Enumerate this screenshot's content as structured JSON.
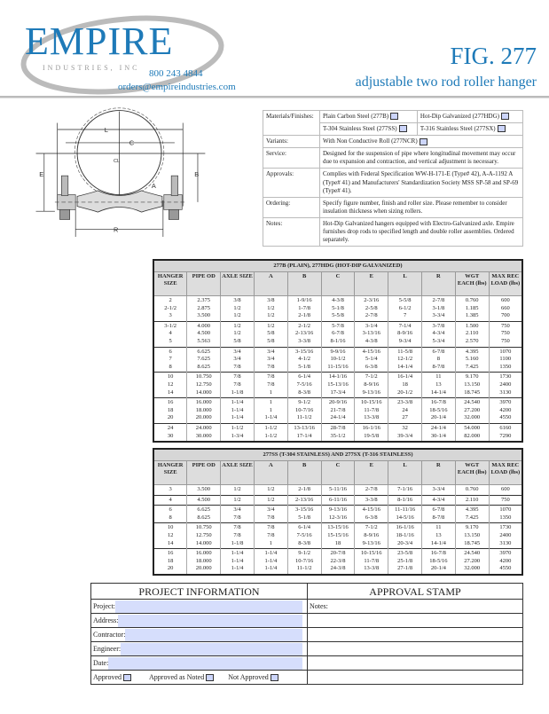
{
  "header": {
    "brand": "EMPIRE",
    "brand_sub": "INDUSTRIES, INC",
    "phone": "800 243 4844",
    "email": "orders@empireindustries.com",
    "figure": "FIG. 277",
    "subtitle": "adjustable two rod roller hanger",
    "accent": "#1e7ab8"
  },
  "drawing": {
    "labels": [
      "L",
      "C",
      "E",
      "B",
      "A",
      "R",
      "CL"
    ]
  },
  "spec": {
    "materials_label": "Materials/Finishes:",
    "materials": [
      "Plain Carbon Steel (277B)",
      "Hot-Dip Galvanized (277HDG)",
      "T-304 Stainless Steel (277SS)",
      "T-316 Stainless Steel (277SX)"
    ],
    "variants_label": "Variants:",
    "variants": "With Non Conductive Roll (277NCR)",
    "service_label": "Service:",
    "service": "Designed for the suspension of pipe where longitudinal movement may occur due to expansion and contraction, and vertical adjustment is necessary.",
    "approvals_label": "Approvals:",
    "approvals": "Complies with Federal Specification WW-H-171-E (Type# 42), A-A-1192 A (Type# 41) and Manufacturers' Standardization Society MSS SP-58 and SP-69 (Type# 41).",
    "ordering_label": "Ordering:",
    "ordering": "Specify figure number, finish and roller size. Please remember to consider insulation thickness when sizing rollers.",
    "notes_label": "Notes:",
    "notes": "Hot-Dip Galvanized hangers equipped with Electro-Galvanized axle. Empire furnishes drop rods to specified length and double roller assemblies. Ordered separately."
  },
  "columns": [
    "HANGER SIZE",
    "PIPE OD",
    "AXLE SIZE",
    "A",
    "B",
    "C",
    "E",
    "L",
    "R",
    "WGT EACH (lbs)",
    "MAX REC LOAD (lbs)"
  ],
  "table1": {
    "title": "277B (PLAIN), 277HDG (HOT-DIP GALVANIZED)",
    "groups": [
      [
        [
          "2",
          "2.375",
          "3/8",
          "3/8",
          "1-9/16",
          "4-3/8",
          "2-3/16",
          "5-5/8",
          "2-7/8",
          "0.760",
          "600"
        ],
        [
          "2-1/2",
          "2.875",
          "1/2",
          "1/2",
          "1-7/8",
          "5-1/8",
          "2-5/8",
          "6-1/2",
          "3-1/8",
          "1.185",
          "660"
        ],
        [
          "3",
          "3.500",
          "1/2",
          "1/2",
          "2-1/8",
          "5-5/8",
          "2-7/8",
          "7",
          "3-3/4",
          "1.385",
          "700"
        ]
      ],
      [
        [
          "3-1/2",
          "4.000",
          "1/2",
          "1/2",
          "2-1/2",
          "5-7/8",
          "3-1/4",
          "7-1/4",
          "3-7/8",
          "1.500",
          "750"
        ],
        [
          "4",
          "4.500",
          "1/2",
          "5/8",
          "2-13/16",
          "6-7/8",
          "3-13/16",
          "8-9/16",
          "4-3/4",
          "2.110",
          "750"
        ],
        [
          "5",
          "5.563",
          "5/8",
          "5/8",
          "3-3/8",
          "8-1/16",
          "4-3/8",
          "9-3/4",
          "5-3/4",
          "2.570",
          "750"
        ]
      ],
      [
        [
          "6",
          "6.625",
          "3/4",
          "3/4",
          "3-15/16",
          "9-9/16",
          "4-15/16",
          "11-5/8",
          "6-7/8",
          "4.395",
          "1070"
        ],
        [
          "7",
          "7.625",
          "3/4",
          "3/4",
          "4-1/2",
          "10-1/2",
          "5-1/4",
          "12-1/2",
          "8",
          "5.160",
          "1100"
        ],
        [
          "8",
          "8.625",
          "7/8",
          "7/8",
          "5-1/8",
          "11-15/16",
          "6-3/8",
          "14-1/4",
          "8-7/8",
          "7.425",
          "1350"
        ]
      ],
      [
        [
          "10",
          "10.750",
          "7/8",
          "7/8",
          "6-1/4",
          "14-1/16",
          "7-1/2",
          "16-1/4",
          "11",
          "9.170",
          "1730"
        ],
        [
          "12",
          "12.750",
          "7/8",
          "7/8",
          "7-5/16",
          "15-13/16",
          "8-9/16",
          "18",
          "13",
          "13.150",
          "2400"
        ],
        [
          "14",
          "14.000",
          "1-1/8",
          "1",
          "8-3/8",
          "17-3/4",
          "9-13/16",
          "20-1/2",
          "14-1/4",
          "18.745",
          "3130"
        ]
      ],
      [
        [
          "16",
          "16.000",
          "1-1/4",
          "1",
          "9-1/2",
          "20-9/16",
          "10-15/16",
          "23-3/8",
          "16-7/8",
          "24.540",
          "3970"
        ],
        [
          "18",
          "18.000",
          "1-1/4",
          "1",
          "10-7/16",
          "21-7/8",
          "11-7/8",
          "24",
          "18-5/16",
          "27.200",
          "4200"
        ],
        [
          "20",
          "20.000",
          "1-1/4",
          "1-1/4",
          "11-1/2",
          "24-1/4",
          "13-3/8",
          "27",
          "20-1/4",
          "32.000",
          "4550"
        ]
      ],
      [
        [
          "24",
          "24.000",
          "1-1/2",
          "1-1/2",
          "13-13/16",
          "28-7/8",
          "16-1/16",
          "32",
          "24-1/4",
          "54.000",
          "6160"
        ],
        [
          "30",
          "30.000",
          "1-3/4",
          "1-1/2",
          "17-1/4",
          "35-1/2",
          "19-5/8",
          "39-3/4",
          "30-1/4",
          "82.000",
          "7290"
        ]
      ]
    ]
  },
  "table2": {
    "title": "277SS (T-304 STAINLESS) AND 277SX (T-316 STAINLESS)",
    "groups": [
      [
        [
          "3",
          "3.500",
          "1/2",
          "1/2",
          "2-1/8",
          "5-11/16",
          "2-7/8",
          "7-1/16",
          "3-3/4",
          "0.760",
          "600"
        ]
      ],
      [
        [
          "4",
          "4.500",
          "1/2",
          "1/2",
          "2-13/16",
          "6-11/16",
          "3-3/8",
          "8-1/16",
          "4-3/4",
          "2.110",
          "750"
        ]
      ],
      [
        [
          "6",
          "6.625",
          "3/4",
          "3/4",
          "3-15/16",
          "9-13/16",
          "4-15/16",
          "11-11/16",
          "6-7/8",
          "4.395",
          "1070"
        ],
        [
          "8",
          "8.625",
          "7/8",
          "7/8",
          "5-1/8",
          "12-3/16",
          "6-3/8",
          "14-5/16",
          "8-7/8",
          "7.425",
          "1350"
        ]
      ],
      [
        [
          "10",
          "10.750",
          "7/8",
          "7/8",
          "6-1/4",
          "13-15/16",
          "7-1/2",
          "16-1/16",
          "11",
          "9.170",
          "1730"
        ],
        [
          "12",
          "12.750",
          "7/8",
          "7/8",
          "7-5/16",
          "15-15/16",
          "8-9/16",
          "18-1/16",
          "13",
          "13.150",
          "2400"
        ],
        [
          "14",
          "14.000",
          "1-1/8",
          "1",
          "8-3/8",
          "18",
          "9-13/16",
          "20-3/4",
          "14-1/4",
          "18.745",
          "3130"
        ]
      ],
      [
        [
          "16",
          "16.000",
          "1-1/4",
          "1-1/4",
          "9-1/2",
          "20-7/8",
          "10-15/16",
          "23-5/8",
          "16-7/8",
          "24.540",
          "3970"
        ],
        [
          "18",
          "18.000",
          "1-1/4",
          "1-1/4",
          "10-7/16",
          "22-3/8",
          "11-7/8",
          "25-1/8",
          "18-5/16",
          "27.200",
          "4200"
        ],
        [
          "20",
          "20.000",
          "1-1/4",
          "1-1/4",
          "11-1/2",
          "24-3/8",
          "13-3/8",
          "27-1/8",
          "20-1/4",
          "32.000",
          "4550"
        ]
      ]
    ]
  },
  "project": {
    "title": "PROJECT INFORMATION",
    "stamp_title": "APPROVAL STAMP",
    "fields": [
      "Project:",
      "Address:",
      "Contractor:",
      "Engineer:",
      "Date:"
    ],
    "notes_label": "Notes:",
    "approvals": [
      "Approved",
      "Approved as Noted",
      "Not Approved"
    ],
    "field_color": "#d6defc"
  }
}
